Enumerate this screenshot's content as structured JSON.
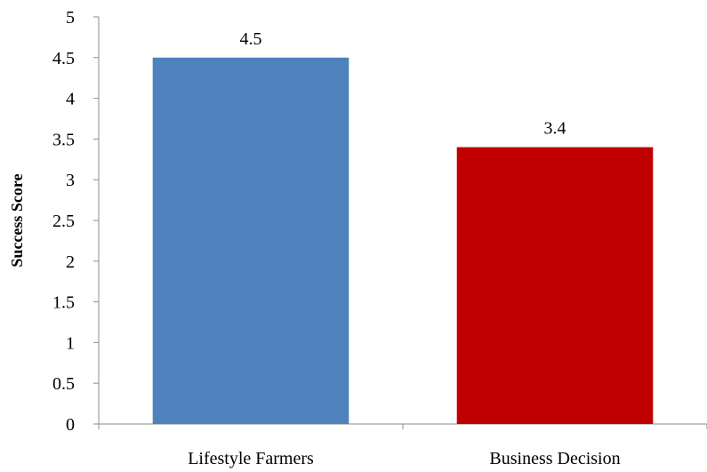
{
  "chart_data": {
    "type": "bar",
    "categories": [
      "Lifestyle Farmers",
      "Business Decision"
    ],
    "values": [
      4.5,
      3.4
    ],
    "data_labels": [
      "4.5",
      "3.4"
    ],
    "colors": [
      "#4f81bd",
      "#c00000"
    ],
    "ylabel": "Success Score",
    "xlabel": "",
    "ylim": [
      0,
      5
    ],
    "yticks": [
      0,
      0.5,
      1,
      1.5,
      2,
      2.5,
      3,
      3.5,
      4,
      4.5,
      5
    ],
    "ytick_labels": [
      "0",
      "0.5",
      "1",
      "1.5",
      "2",
      "2.5",
      "3",
      "3.5",
      "4",
      "4.5",
      "5"
    ],
    "grid": false,
    "legend": "none"
  }
}
